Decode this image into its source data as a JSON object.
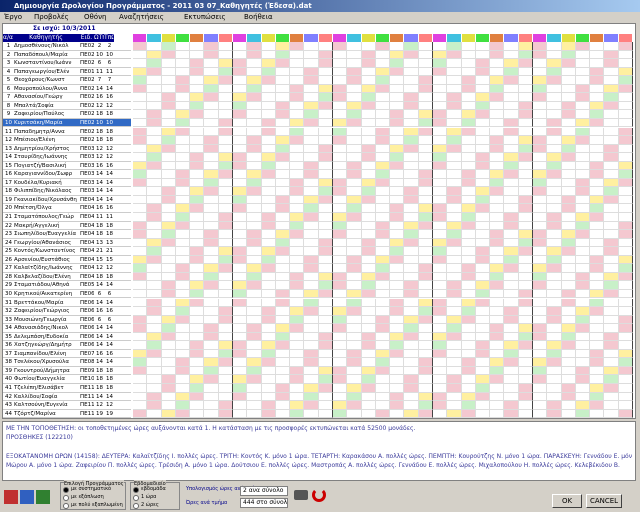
{
  "window": {
    "title": "Δημιουργία Ωρολογίου Προγράμματος - 2011 03 07_Καθηγητές (Έδεσα).dat",
    "menu": [
      "Έργο",
      "Προβολές",
      "Οθόνη",
      "Αναζητήσεις",
      "Εκτυπώσεις",
      "Βοήθεια"
    ]
  },
  "table": {
    "valid_from": "Σε ισχύ: 10/3/2011",
    "headers": [
      "α/α",
      "Καθηγητής",
      "Ειδ.",
      "ΩΤπ",
      "ΤπΩ"
    ],
    "rows": [
      [
        "1",
        "Δημοσθένους/Νικόλ",
        "ΠΕ02",
        "2",
        "2"
      ],
      [
        "2",
        "Παπαδόπουλ/Μαρία",
        "ΠΕ02",
        "10",
        "10"
      ],
      [
        "3",
        "Κωνσταντίνου/Ιωάνν",
        "ΠΕ02",
        "6",
        "6"
      ],
      [
        "4",
        "Παπαγεωργίου/Ελέν",
        "ΠΕ01",
        "11",
        "11"
      ],
      [
        "5",
        "Θεοχάρους/Κωνστ",
        "ΠΕ02",
        "7",
        "7"
      ],
      [
        "6",
        "Μαυροπούλου/Άννα",
        "ΠΕ02",
        "14",
        "14"
      ],
      [
        "7",
        "Αθανασίου/Γεώργ",
        "ΠΕ02",
        "16",
        "16"
      ],
      [
        "8",
        "Μπαλτά/Σοφία",
        "ΠΕ02",
        "12",
        "12"
      ],
      [
        "9",
        "Ζαφειρίου/Παύλος",
        "ΠΕ02",
        "18",
        "18"
      ],
      [
        "10",
        "Κυριτσάκη/Μαρία",
        "ΠΕ02",
        "10",
        "10"
      ],
      [
        "11",
        "Παπαδημητρ/Αννα",
        "ΠΕ02",
        "18",
        "18"
      ],
      [
        "12",
        "Μπέσιου/Ελένη",
        "ΠΕ02",
        "18",
        "18"
      ],
      [
        "13",
        "Δημητρίου/Χρήστος",
        "ΠΕ03",
        "12",
        "12"
      ],
      [
        "14",
        "Σταυρίδης/Ιωάννης",
        "ΠΕ03",
        "12",
        "12"
      ],
      [
        "15",
        "Πογιατζή/Βασιλική",
        "ΠΕ03",
        "16",
        "16"
      ],
      [
        "16",
        "Καραγιαννίδου/Σωφρ",
        "ΠΕ03",
        "14",
        "14"
      ],
      [
        "17",
        "Κουδέλα/Κυριακή",
        "ΠΕ03",
        "14",
        "14"
      ],
      [
        "18",
        "Φιλιππίδης/Νικόλαος",
        "ΠΕ03",
        "14",
        "14"
      ],
      [
        "19",
        "Γκανιακίδου/Χρυσάνθη",
        "ΠΕ04",
        "14",
        "14"
      ],
      [
        "20",
        "Μπέτση/Όλγα",
        "ΠΕ04",
        "16",
        "16"
      ],
      [
        "21",
        "Σταματόπουλος/Γεώρ",
        "ΠΕ04",
        "11",
        "11"
      ],
      [
        "22",
        "Μακρή/Αγγελική",
        "ΠΕ04",
        "18",
        "18"
      ],
      [
        "23",
        "Σιωπηλίδου/Ευαγγελία",
        "ΠΕ04",
        "18",
        "18"
      ],
      [
        "24",
        "Γεωργίου/Αθανάσιος",
        "ΠΕ04",
        "13",
        "13"
      ],
      [
        "25",
        "Κοντός/Κωνσταντίνος",
        "ΠΕ04",
        "21",
        "21"
      ],
      [
        "26",
        "Αρσενίου/Ευστάθιος",
        "ΠΕ04",
        "15",
        "15"
      ],
      [
        "27",
        "Καλαϊτζίδης/Ιωάννης",
        "ΠΕ04",
        "12",
        "12"
      ],
      [
        "28",
        "Καλβελαζίδου/Ελένη",
        "ΠΕ04",
        "18",
        "18"
      ],
      [
        "29",
        "Σταματιάδου/Αθηνά",
        "ΠΕ05",
        "14",
        "14"
      ],
      [
        "30",
        "Κρητικού/Αικατερίνη",
        "ΠΕ06",
        "6",
        "6"
      ],
      [
        "31",
        "Βρεττάκου/Μαρία",
        "ΠΕ06",
        "14",
        "14"
      ],
      [
        "32",
        "Ζαφειρίου/Γεώργιος",
        "ΠΕ06",
        "16",
        "16"
      ],
      [
        "33",
        "Μουσιώνη/Γεωργία",
        "ΠΕ06",
        "6",
        "6"
      ],
      [
        "34",
        "Αθανασιάδης/Νικολ",
        "ΠΕ06",
        "14",
        "14"
      ],
      [
        "35",
        "Δελεμπάση/Ευδοκία",
        "ΠΕ06",
        "14",
        "14"
      ],
      [
        "36",
        "Χατζηγεώργ/Δημήτρ",
        "ΠΕ06",
        "14",
        "14"
      ],
      [
        "37",
        "Σιαμπανίδου/Ελένη",
        "ΠΕ07",
        "16",
        "16"
      ],
      [
        "38",
        "Τσελέκου/Χρυσούλα",
        "ΠΕ08",
        "14",
        "14"
      ],
      [
        "39",
        "Γκουντρού/Δήμητρα",
        "ΠΕ09",
        "18",
        "18"
      ],
      [
        "40",
        "Φωτίου/Ευαγγελία",
        "ΠΕ10",
        "18",
        "18"
      ],
      [
        "41",
        "Τζελέπη/Ελισάβετ",
        "ΠΕ11",
        "18",
        "18"
      ],
      [
        "42",
        "Καλλίδου/Σοφία",
        "ΠΕ11",
        "14",
        "14"
      ],
      [
        "43",
        "Καλτσούνη/Ευγενία",
        "ΠΕ11",
        "12",
        "12"
      ],
      [
        "44",
        "Τζόρτζ/Μαρίνα",
        "ΠΕ11",
        "19",
        "19"
      ]
    ]
  },
  "messages": [
    "ΜΕ ΤΗΝ ΤΟΠΟΘΕΤΗΣΗ: οι τοποθετημένες ώρες αυξάνονται κατά 1. Η κατάσταση με τις προσφορές εκτυπώνεται κατά 52500 μονάδες.",
    "ΠΡΟΣΘΗΚΕΣ (122210)",
    "ΕΞΟΚΑΤΑΝΟΜΗ ΩΡΩΝ (14158): ΔΕΥΤΕΡΑ: Καλαϊτζίδης Ι. πολλές ώρες. ΤΡΙΤΗ: Κοντός Κ. μόνο 1 ώρα. ΤΕΤΑΡΤΗ: Καρακάσου Α. πολλές ώρες. ΠΕΜΠΤΗ: Κουρούτζης Ν. μόνο 1 ώρα. ΠΑΡΑΣΚΕΥΗ: Γεννάδου Ε. μόνο 1 ώρα.",
    "Μώρου Α. μόνο 1 ώρα. Ζαφειρίου Π. πολλές ώρες. Τρέσιδη Α. μόνο 1 ώρα. Δούτσιου Ε. πολλές ώρες. Μαστροπάς Α. πολλές ώρες. Γεννάδου Ε. πολλές ώρες. Μιχαλοπούλου Η. πολλές ώρες. Κελεβέκιδου Β."
  ],
  "controls": {
    "group1": {
      "title": "Επιλογή Προγράμματος",
      "options": [
        "με συστηματικό",
        "με εξάπλωση",
        "με πολύ εξαπλωμένη"
      ]
    },
    "group2": {
      "title": "Εβδομαδιαίο",
      "options": [
        "εβδομάδα",
        "1 ώρα",
        "2 ώρες"
      ]
    },
    "label1": "Υπολογισμός ώρες ανά τμήμα",
    "select1": "2 ανα σύνολο",
    "label2": "Ώρες ανά τμήμα",
    "select2": "444 στο σύνολο",
    "ok": "OK",
    "cancel": "CANCEL"
  }
}
